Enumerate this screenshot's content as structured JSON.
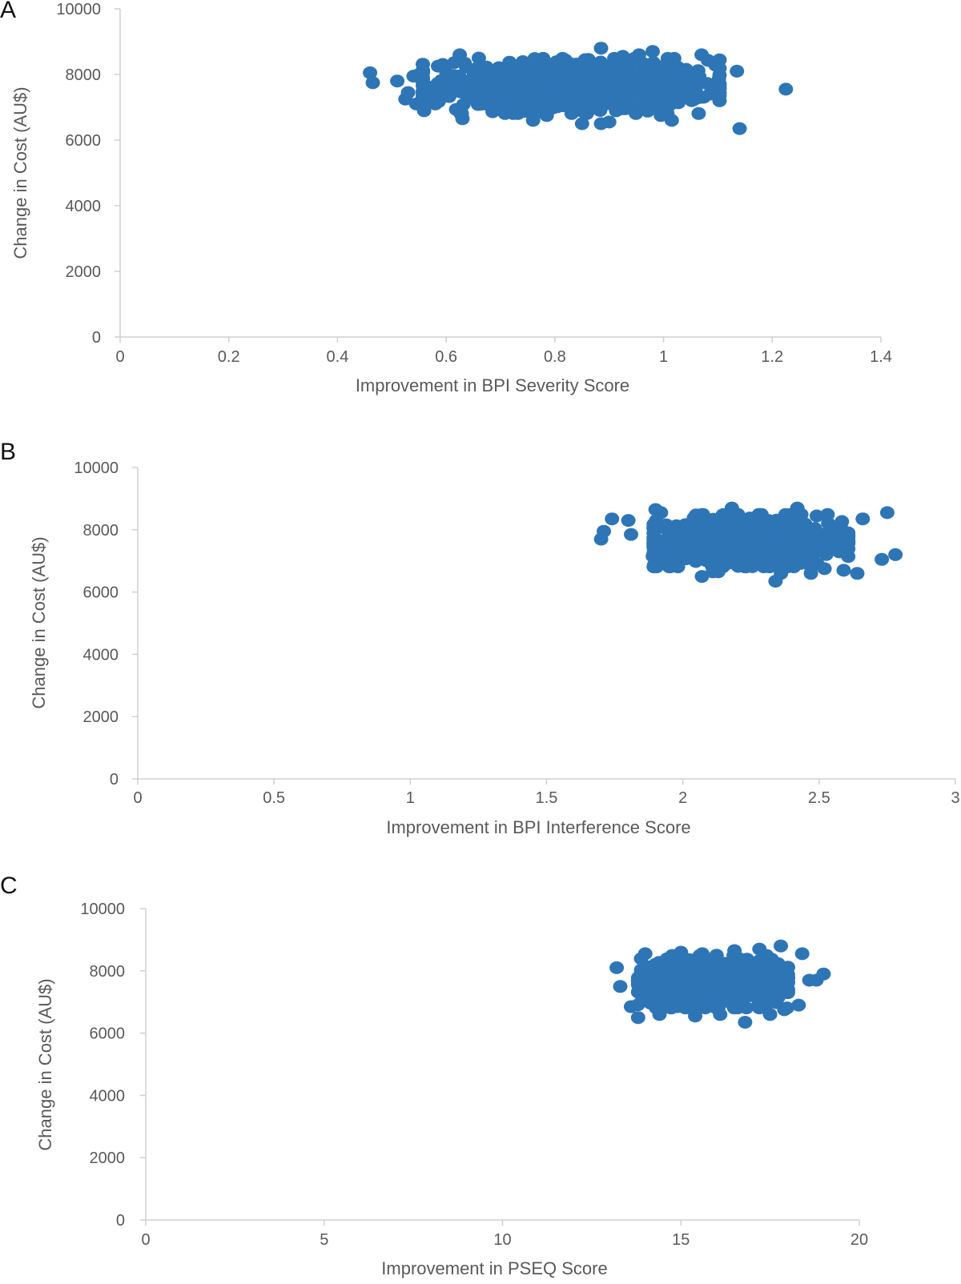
{
  "colors": {
    "marker": "#2e75b6",
    "axis": "#d0d0d0",
    "text": "#595959"
  },
  "chart_data": [
    {
      "panel": "A",
      "type": "scatter",
      "title": "",
      "xlabel": "Improvement in BPI Severity Score",
      "ylabel": "Change in Cost (AU$)",
      "xlim": [
        0,
        1.4
      ],
      "ylim": [
        0,
        10000
      ],
      "xticks": [
        "0",
        "0.2",
        "0.4",
        "0.6",
        "0.8",
        "1",
        "1.2",
        "1.4"
      ],
      "yticks": [
        "0",
        "2000",
        "4000",
        "6000",
        "8000",
        "10000"
      ],
      "grid": false,
      "legend": "none",
      "series": [
        {
          "x": [
            0.46,
            0.465,
            0.51,
            0.525,
            0.53,
            0.54,
            0.545,
            0.55,
            0.57,
            0.58,
            0.6,
            0.625,
            0.63,
            0.66,
            0.76,
            0.785,
            0.85,
            0.885,
            0.9,
            0.885,
            0.955,
            0.995,
            1.015,
            1.07,
            1.135,
            1.14,
            1.225,
            0.98,
            0.925
          ],
          "y": [
            8050,
            7750,
            7800,
            7250,
            7450,
            7950,
            7100,
            8000,
            7150,
            7100,
            7700,
            8600,
            6650,
            8500,
            6600,
            6750,
            6500,
            8800,
            6550,
            6500,
            8600,
            6750,
            6600,
            8600,
            8100,
            6350,
            7550,
            8700,
            8550
          ],
          "cloud": {
            "center": [
              0.83,
              7650
            ],
            "spread": [
              0.13,
              400
            ],
            "count": 700
          }
        }
      ]
    },
    {
      "panel": "B",
      "type": "scatter",
      "title": "",
      "xlabel": "Improvement in BPI Interference Score",
      "ylabel": "Change in Cost (AU$)",
      "xlim": [
        0,
        3
      ],
      "ylim": [
        0,
        10000
      ],
      "xticks": [
        "0",
        "0.5",
        "1",
        "1.5",
        "2",
        "2.5",
        "3"
      ],
      "yticks": [
        "0",
        "2000",
        "4000",
        "6000",
        "8000",
        "10000"
      ],
      "grid": false,
      "legend": "none",
      "series": [
        {
          "x": [
            1.7,
            1.71,
            1.74,
            1.8,
            1.81,
            1.89,
            1.9,
            1.92,
            1.95,
            1.98,
            2.07,
            2.11,
            2.13,
            2.18,
            2.34,
            2.36,
            2.42,
            2.47,
            2.52,
            2.59,
            2.64,
            2.66,
            2.73,
            2.75,
            2.78
          ],
          "y": [
            7700,
            7950,
            8350,
            8300,
            7850,
            7150,
            8650,
            8550,
            7350,
            6900,
            6500,
            6650,
            6650,
            8700,
            6350,
            6600,
            8700,
            6600,
            6750,
            6700,
            6600,
            8350,
            7050,
            8550,
            7200
          ],
          "cloud": {
            "center": [
              2.25,
              7650
            ],
            "spread": [
              0.17,
              400
            ],
            "count": 700
          }
        }
      ]
    },
    {
      "panel": "C",
      "type": "scatter",
      "title": "",
      "xlabel": "Improvement in PSEQ Score",
      "ylabel": "Change in Cost (AU$)",
      "xlim": [
        0,
        20
      ],
      "ylim": [
        0,
        10000
      ],
      "xticks": [
        "0",
        "5",
        "10",
        "15",
        "20"
      ],
      "yticks": [
        "0",
        "2000",
        "4000",
        "6000",
        "8000",
        "10000"
      ],
      "grid": false,
      "legend": "none",
      "series": [
        {
          "x": [
            13.2,
            13.3,
            13.6,
            13.8,
            14.0,
            14.4,
            14.5,
            14.9,
            15.0,
            15.4,
            15.6,
            16.0,
            16.1,
            16.5,
            16.8,
            17.2,
            17.5,
            17.8,
            17.9,
            18.3,
            18.6,
            18.8,
            19.0,
            18.4
          ],
          "y": [
            8100,
            7500,
            6850,
            6500,
            8550,
            6600,
            7050,
            6850,
            8600,
            6550,
            8550,
            8500,
            6600,
            8650,
            6350,
            8700,
            6600,
            8800,
            6750,
            6900,
            7700,
            7700,
            7900,
            8550
          ],
          "cloud": {
            "center": [
              15.9,
              7650
            ],
            "spread": [
              1.0,
              400
            ],
            "count": 700
          }
        }
      ]
    }
  ]
}
